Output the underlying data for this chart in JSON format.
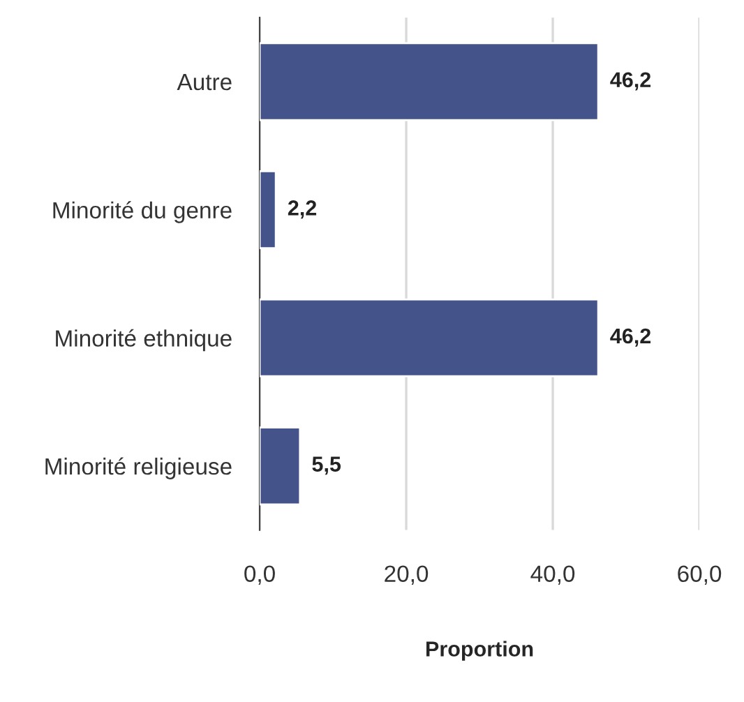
{
  "chart_data": {
    "type": "bar",
    "orientation": "horizontal",
    "xlabel": "Proportion",
    "categories": [
      "Autre",
      "Minorité du genre",
      "Minorité ethnique",
      "Minorité religieuse"
    ],
    "values": [
      46.2,
      2.2,
      46.2,
      5.5
    ],
    "color": "#44548a",
    "value_labels": [
      "46,2",
      "2,2",
      "46,2",
      "5,5"
    ],
    "xlim": [
      0,
      60
    ],
    "xticks": [
      {
        "value": 0,
        "label": "0,0"
      },
      {
        "value": 20,
        "label": "20,0"
      },
      {
        "value": 40,
        "label": "40,0"
      },
      {
        "value": 60,
        "label": "60,0"
      }
    ],
    "grid": "x",
    "legend": false
  }
}
